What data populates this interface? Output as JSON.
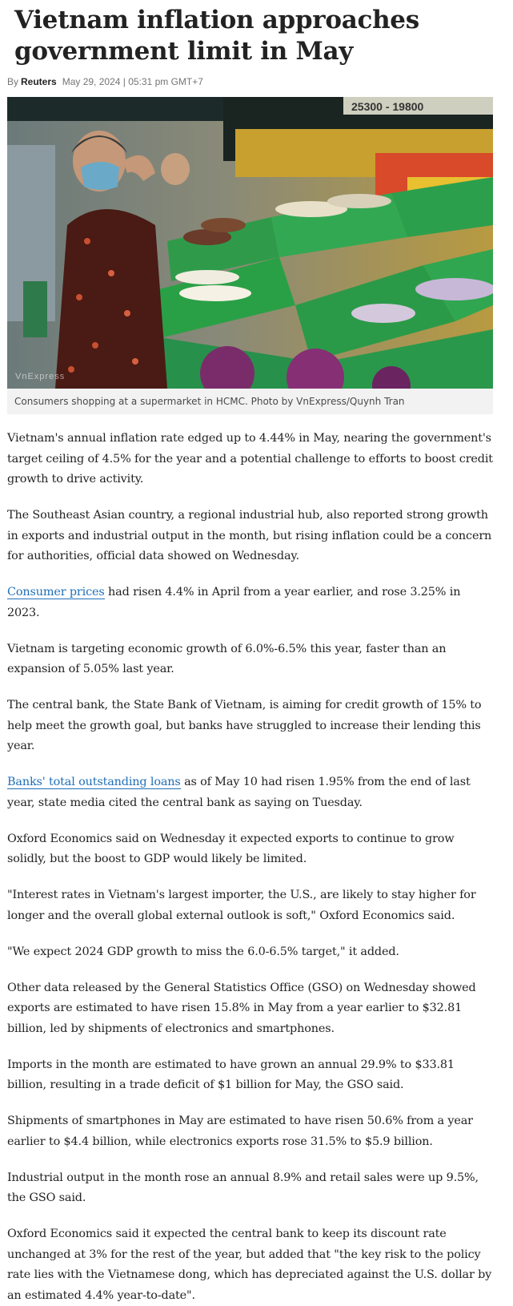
{
  "article": {
    "title": "Vietnam inflation approaches government limit in May",
    "byline_prefix": "By",
    "author": "Reuters",
    "date": "May 29, 2024 | 05:31 pm GMT+7"
  },
  "photo": {
    "watermark": "VnExpress",
    "caption": "Consumers shopping at a supermarket in HCMC. Photo by VnExpress/Quynh Tran",
    "price_sign": "25300 - 19800",
    "colors": {
      "basket": "#2f9b4a",
      "shelf_dark": "#2a2e2a",
      "cabbage": "#7a2c6a"
    }
  },
  "paragraphs": [
    {
      "text": "Vietnam's annual inflation rate edged up to 4.44% in May, nearing the government's target ceiling of 4.5% for the year and a potential challenge to efforts to boost credit growth to drive activity."
    },
    {
      "text": "The Southeast Asian country, a regional industrial hub, also reported strong growth in exports and industrial output in the month, but rising inflation could be a concern for authorities, official data showed on Wednesday."
    },
    {
      "link": "Consumer prices",
      "text": " had risen 4.4% in April from a year earlier, and rose 3.25% in 2023."
    },
    {
      "text": "Vietnam is targeting economic growth of 6.0%-6.5% this year, faster than an expansion of 5.05% last year."
    },
    {
      "text": "The central bank, the State Bank of Vietnam, is aiming for credit growth of 15% to help meet the growth goal, but banks have struggled to increase their lending this year."
    },
    {
      "link": "Banks' total outstanding loans",
      "text": " as of May 10 had risen 1.95% from the end of last year, state media cited the central bank as saying on Tuesday."
    },
    {
      "text": "Oxford Economics said on Wednesday it expected exports to continue to grow solidly, but the boost to GDP would likely be limited."
    },
    {
      "text": "\"Interest rates in Vietnam's largest importer, the U.S., are likely to stay higher for longer and the overall global external outlook is soft,\" Oxford Economics said."
    },
    {
      "text": "\"We expect 2024 GDP growth to miss the 6.0-6.5% target,\" it added."
    },
    {
      "text": "Other data released by the General Statistics Office (GSO) on Wednesday showed exports are estimated to have risen 15.8% in May from a year earlier to $32.81 billion, led by shipments of electronics and smartphones."
    },
    {
      "text": "Imports in the month are estimated to have grown an annual 29.9% to $33.81 billion, resulting in a trade deficit of $1 billion for May, the GSO said."
    },
    {
      "text": "Shipments of smartphones in May are estimated to have risen 50.6% from a year earlier to $4.4 billion, while electronics exports rose 31.5% to $5.9 billion."
    },
    {
      "text": "Industrial output in the month rose an annual 8.9% and retail sales were up 9.5%, the GSO said."
    },
    {
      "text": "Oxford Economics said it expected the central bank to keep its discount rate unchanged at 3% for the rest of the year, but added that \"the key risk to the policy rate lies with the Vietnamese dong, which has depreciated against the U.S. dollar by an estimated 4.4% year-to-date\"."
    }
  ]
}
